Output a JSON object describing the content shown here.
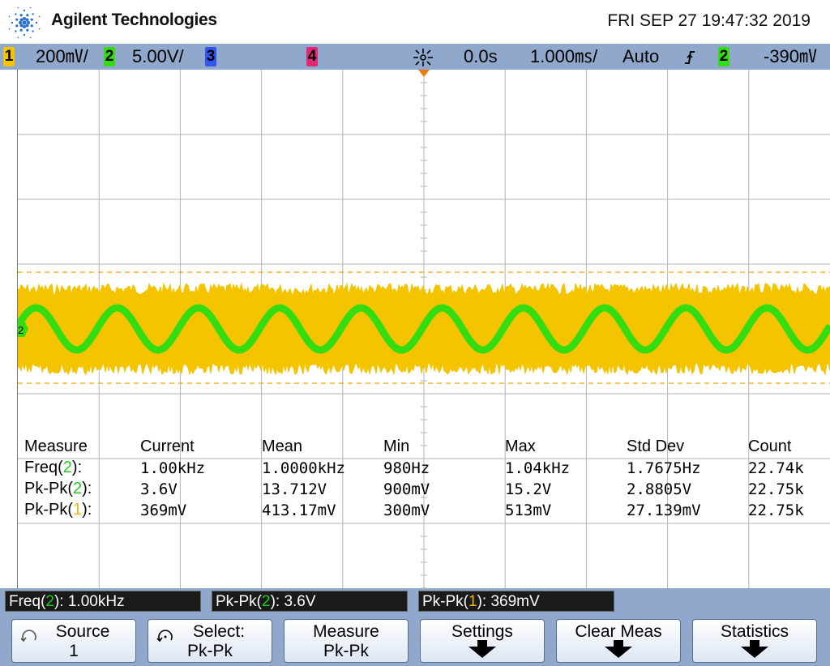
{
  "header": {
    "brand": "Agilent Technologies",
    "datetime": "FRI SEP 27 19:47:32 2019"
  },
  "topbar": {
    "ch1": {
      "num": "1",
      "scale": "200",
      "unit": "㎷/"
    },
    "ch2": {
      "num": "2",
      "scale": "5.00V/"
    },
    "ch3": {
      "num": "3"
    },
    "ch4": {
      "num": "4"
    },
    "time_delay": "0.0s",
    "time_scale": "1.000",
    "time_unit": "㎳/",
    "trigger_mode": "Auto",
    "trigger_slope": "∱",
    "trigger_source": "2",
    "trigger_level": "-390",
    "trigger_unit": "㎷"
  },
  "colors": {
    "ch1": "#f5c400",
    "ch2": "#33dd11",
    "ch3": "#3355ee",
    "ch4": "#e0287a",
    "topbar": "#8fa8cc",
    "grid": "#b4b4b4"
  },
  "measurements": {
    "headers": [
      "Measure",
      "Current",
      "Mean",
      "Min",
      "Max",
      "Std Dev",
      "Count"
    ],
    "rows": [
      {
        "name": "Freq(",
        "ch": "2",
        "close": "):",
        "current": "1.00kHz",
        "mean": "1.0000kHz",
        "min": "980Hz",
        "max": "1.04kHz",
        "std": "1.7675Hz",
        "count": "22.74k"
      },
      {
        "name": "Pk-Pk(",
        "ch": "2",
        "close": "):",
        "current": "3.6V",
        "mean": "13.712V",
        "min": "900mV",
        "max": "15.2V",
        "std": "2.8805V",
        "count": "22.75k"
      },
      {
        "name": "Pk-Pk(",
        "ch": "1",
        "close": "):",
        "current": "369mV",
        "mean": "413.17mV",
        "min": "300mV",
        "max": "513mV",
        "std": "27.139mV",
        "count": "22.75k"
      }
    ]
  },
  "status": [
    {
      "pre": "Freq(",
      "ch": "2",
      "post": "): 1.00kHz"
    },
    {
      "pre": "Pk-Pk(",
      "ch": "2",
      "post": "): 3.6V"
    },
    {
      "pre": "Pk-Pk(",
      "ch": "1",
      "post": "): 369mV"
    }
  ],
  "softkeys": [
    {
      "line1": "Source",
      "line2": "1",
      "icon": "rotate-knob-icon"
    },
    {
      "line1": "Select:",
      "line2": "Pk-Pk",
      "icon": "rotate-knob-icon"
    },
    {
      "line1": "Measure",
      "line2": "Pk-Pk"
    },
    {
      "line1": "Settings",
      "icon": "down-arrow-icon"
    },
    {
      "line1": "Clear Meas",
      "icon": "down-arrow-icon"
    },
    {
      "line1": "Statistics",
      "icon": "down-arrow-icon"
    }
  ],
  "waveforms": {
    "ch2_cycles": 10,
    "ch1_band": "noise"
  }
}
